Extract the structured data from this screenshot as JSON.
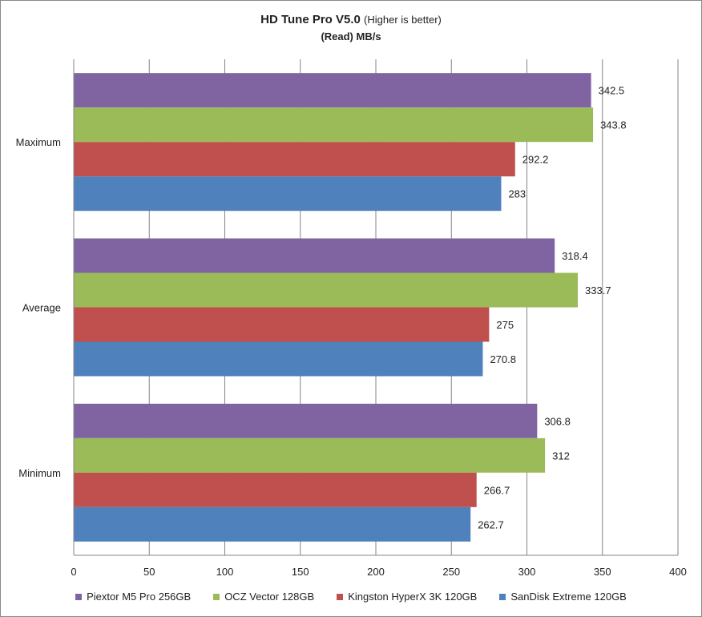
{
  "chart_data": {
    "type": "bar",
    "orientation": "horizontal",
    "title": "HD Tune Pro V5.0",
    "title_note": "(Higher is better)",
    "subtitle": "(Read) MB/s",
    "categories": [
      "Maximum",
      "Average",
      "Minimum"
    ],
    "series": [
      {
        "name": "Piextor M5 Pro 256GB",
        "color": "#8064a2",
        "values": [
          342.5,
          318.4,
          306.8
        ]
      },
      {
        "name": "OCZ Vector 128GB",
        "color": "#9bbb59",
        "values": [
          343.8,
          333.7,
          312
        ]
      },
      {
        "name": "Kingston HyperX 3K 120GB",
        "color": "#c0504d",
        "values": [
          292.2,
          275,
          266.7
        ]
      },
      {
        "name": "SanDisk Extreme 120GB",
        "color": "#4f81bd",
        "values": [
          283,
          270.8,
          262.7
        ]
      }
    ],
    "xlim": [
      0,
      400
    ],
    "x_ticks": [
      0,
      50,
      100,
      150,
      200,
      250,
      300,
      350,
      400
    ],
    "grid": true,
    "legend_position": "bottom"
  }
}
